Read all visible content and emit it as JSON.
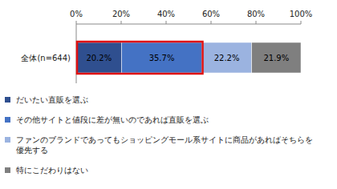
{
  "chart_data": {
    "type": "bar",
    "orientation": "horizontal",
    "stacked": true,
    "data_labels": true,
    "grid": false,
    "legend": "bottom",
    "categories": [
      "全体(n=644)"
    ],
    "xlim": [
      0,
      100
    ],
    "xticks": [
      {
        "value": 0,
        "label": "0%"
      },
      {
        "value": 20,
        "label": "20%"
      },
      {
        "value": 40,
        "label": "40%"
      },
      {
        "value": 60,
        "label": "60%"
      },
      {
        "value": 80,
        "label": "80%"
      },
      {
        "value": 100,
        "label": "100%"
      }
    ],
    "series": [
      {
        "name": "だいたい直販を選ぶ",
        "color": "#2f4f8f",
        "values": [
          20.2
        ],
        "value_labels": [
          "20.2%"
        ]
      },
      {
        "name": "その他サイトと値段に差が無いのであれば直販を選ぶ",
        "color": "#4472c4",
        "values": [
          35.7
        ],
        "value_labels": [
          "35.7%"
        ]
      },
      {
        "name": "ファンのブランドであってもショッピングモール系サイトに商品があればそちらを優先する",
        "color": "#9bb3e0",
        "values": [
          22.2
        ],
        "value_labels": [
          "22.2%"
        ]
      },
      {
        "name": "特にこだわりはない",
        "color": "#7f7f7f",
        "values": [
          21.9
        ],
        "value_labels": [
          "21.9%"
        ]
      }
    ]
  }
}
